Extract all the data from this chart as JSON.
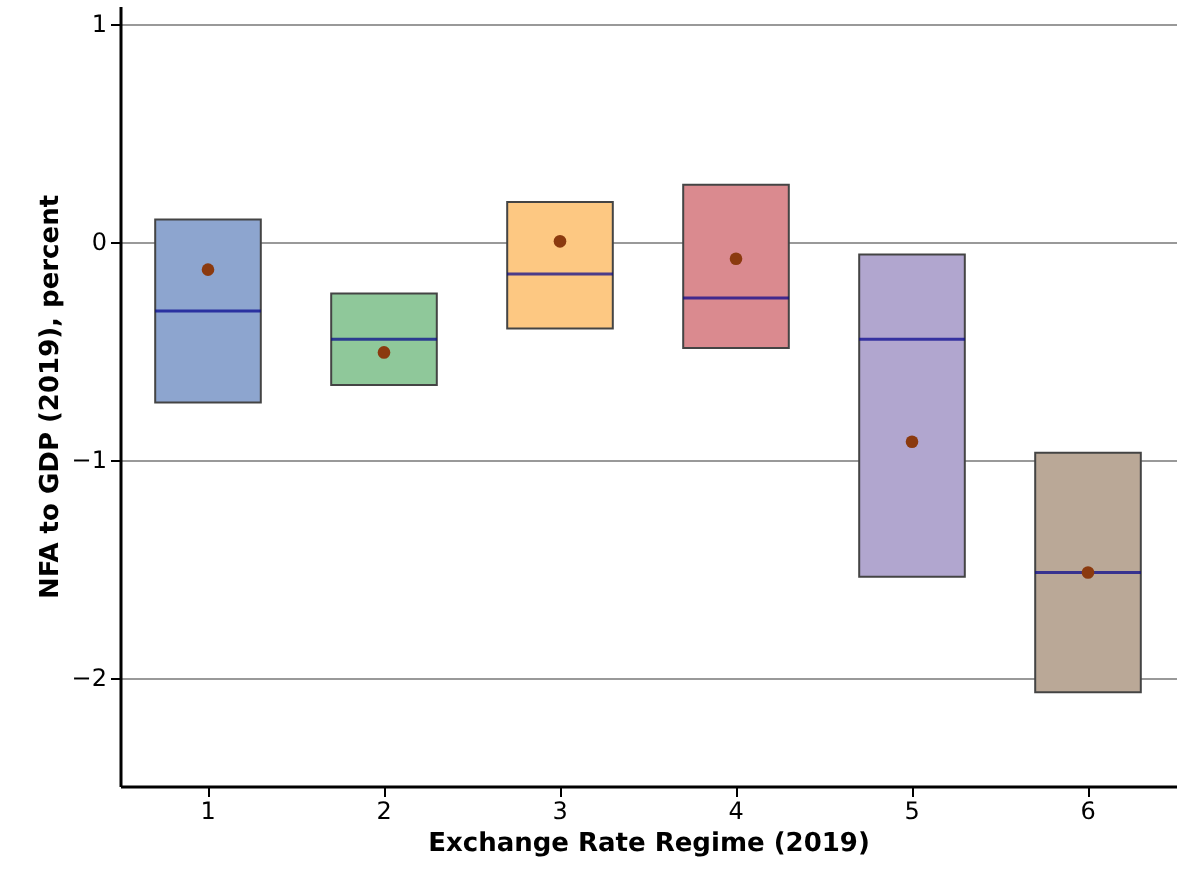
{
  "chart_data": {
    "type": "box",
    "xlabel": "Exchange Rate Regime (2019)",
    "ylabel": "NFA to GDP (2019), percent",
    "categories": [
      "1",
      "2",
      "3",
      "4",
      "5",
      "6"
    ],
    "boxes": [
      {
        "q1": -0.74,
        "median": -0.32,
        "q3": 0.1,
        "mean": -0.13
      },
      {
        "q1": -0.66,
        "median": -0.45,
        "q3": -0.24,
        "mean": -0.51
      },
      {
        "q1": -0.4,
        "median": -0.15,
        "q3": 0.18,
        "mean": 0.0
      },
      {
        "q1": -0.49,
        "median": -0.26,
        "q3": 0.26,
        "mean": -0.08
      },
      {
        "q1": -1.54,
        "median": -0.45,
        "q3": -0.06,
        "mean": -0.92
      },
      {
        "q1": -2.07,
        "median": -1.52,
        "q3": -0.97,
        "mean": -1.52
      }
    ],
    "colors": [
      "#8da5cf",
      "#8fc89a",
      "#fdc882",
      "#da8a8f",
      "#b1a6cf",
      "#baa897"
    ],
    "ylim": [
      -2.5,
      1.08
    ],
    "yticks": [
      -2,
      -1,
      0,
      1
    ],
    "grid": "y"
  }
}
